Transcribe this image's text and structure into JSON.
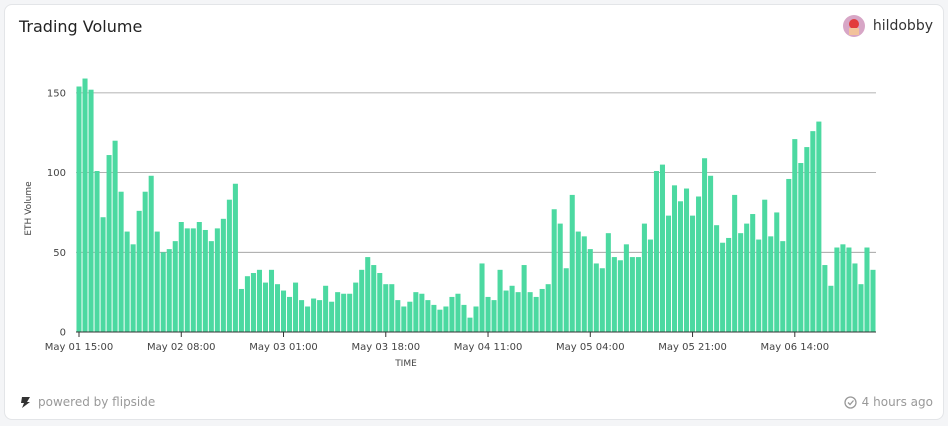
{
  "header": {
    "user": "hildobby"
  },
  "footer": {
    "powered": "powered by flipside",
    "updated": "4 hours ago"
  },
  "chart_data": {
    "type": "bar",
    "title": "Trading Volume",
    "xlabel": "TIME",
    "ylabel": "ETH Volume",
    "color": "#4cd9a1",
    "categories": [
      "May 01 15:00",
      null,
      null,
      null,
      null,
      null,
      null,
      null,
      null,
      null,
      null,
      null,
      null,
      null,
      null,
      null,
      null,
      "May 02 08:00",
      null,
      null,
      null,
      null,
      null,
      null,
      null,
      null,
      null,
      null,
      null,
      null,
      null,
      null,
      null,
      null,
      "May 03 01:00",
      null,
      null,
      null,
      null,
      null,
      null,
      null,
      null,
      null,
      null,
      null,
      null,
      null,
      null,
      null,
      null,
      "May 03 18:00",
      null,
      null,
      null,
      null,
      null,
      null,
      null,
      null,
      null,
      null,
      null,
      null,
      null,
      null,
      null,
      null,
      "May 04 11:00",
      null,
      null,
      null,
      null,
      null,
      null,
      null,
      null,
      null,
      null,
      null,
      null,
      null,
      null,
      null,
      null,
      "May 05 04:00",
      null,
      null,
      null,
      null,
      null,
      null,
      null,
      null,
      null,
      null,
      null,
      null,
      null,
      null,
      null,
      null,
      "May 05 21:00",
      null,
      null,
      null,
      null,
      null,
      null,
      null,
      null,
      null,
      null,
      null,
      null,
      null,
      null,
      null,
      null,
      "May 06 14:00",
      null,
      null,
      null,
      null,
      null,
      null,
      null,
      null,
      null,
      null,
      null,
      null,
      null
    ],
    "values": [
      154,
      159,
      152,
      101,
      72,
      111,
      120,
      88,
      63,
      55,
      76,
      88,
      98,
      63,
      50,
      52,
      57,
      69,
      65,
      65,
      69,
      64,
      57,
      65,
      71,
      83,
      93,
      27,
      35,
      37,
      39,
      31,
      39,
      30,
      26,
      22,
      31,
      20,
      16,
      21,
      20,
      29,
      19,
      25,
      24,
      24,
      31,
      39,
      47,
      42,
      37,
      30,
      30,
      20,
      16,
      19,
      25,
      24,
      20,
      17,
      14,
      16,
      22,
      24,
      17,
      9,
      16,
      43,
      22,
      20,
      39,
      26,
      29,
      25,
      42,
      25,
      22,
      27,
      30,
      77,
      68,
      40,
      86,
      63,
      60,
      52,
      43,
      40,
      62,
      47,
      45,
      55,
      47,
      47,
      68,
      58,
      101,
      105,
      73,
      92,
      82,
      90,
      73,
      85,
      109,
      98,
      67,
      56,
      59,
      86,
      62,
      68,
      74,
      58,
      83,
      60,
      75,
      57,
      96,
      121,
      106,
      116,
      126,
      132,
      42,
      29,
      53,
      55,
      53,
      43,
      30,
      53,
      39
    ],
    "ylim": [
      0,
      170
    ],
    "yticks": [
      0,
      50,
      100,
      150
    ],
    "grid": true
  }
}
